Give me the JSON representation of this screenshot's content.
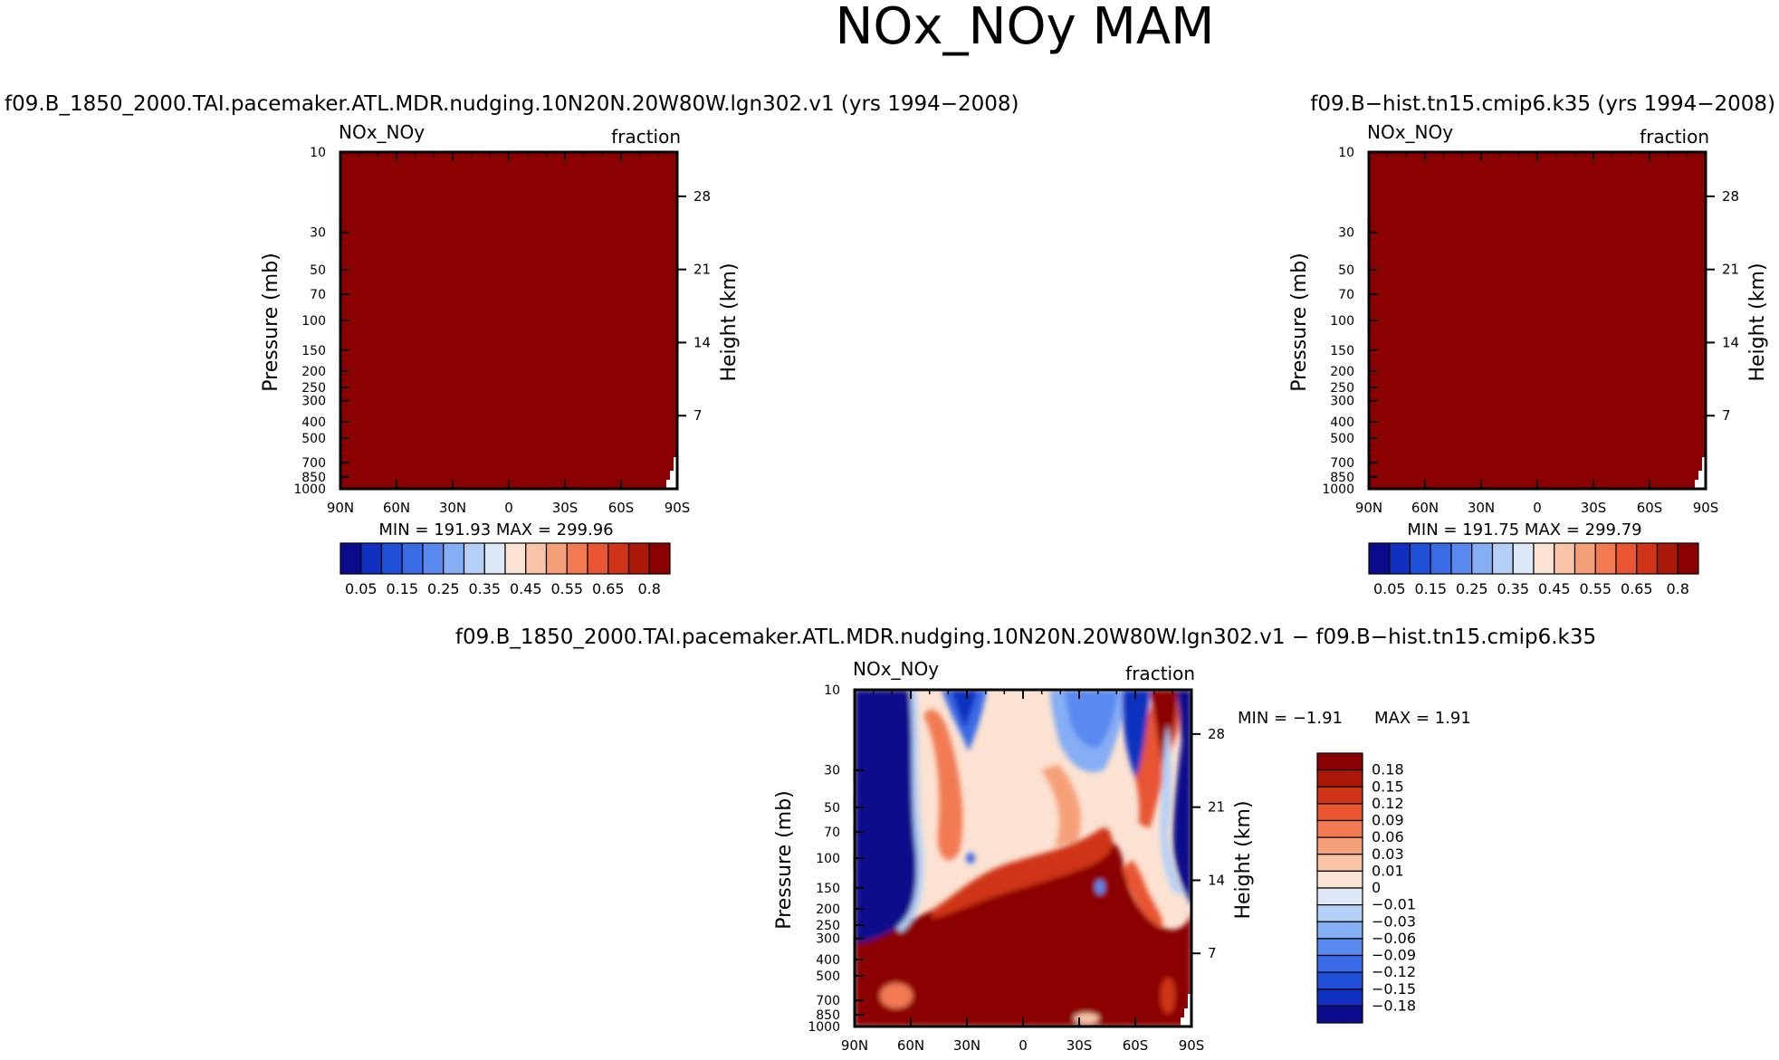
{
  "figure": {
    "title": "NOx_NOy MAM"
  },
  "colors": {
    "saturated_red": "#8b0000",
    "ink": "#000000",
    "paper": "#ffffff"
  },
  "chart_data": [
    {
      "id": "panel_left",
      "type": "heatmap",
      "title": "f09.B_1850_2000.TAI.pacemaker.ATL.MDR.nudging.10N20N.20W80W.lgn302.v1  (yrs 1994−2008)",
      "corner_left": "NOx_NOy",
      "corner_right": "fraction",
      "ylabel": "Pressure (mb)",
      "y2label": "Height (km)",
      "xticks": [
        "90N",
        "60N",
        "30N",
        "0",
        "30S",
        "60S",
        "90S"
      ],
      "yticks": [
        "10",
        "30",
        "50",
        "70",
        "100",
        "150",
        "200",
        "250",
        "300",
        "400",
        "500",
        "700",
        "850",
        "1000"
      ],
      "y2ticks": [
        "28",
        "21",
        "14",
        "7"
      ],
      "stats": "MIN =  191.93   MAX =  299.96",
      "fill": "uniformly saturated (all values above top contour 0.8)",
      "colorbar": {
        "labels": [
          "0.05",
          "0.15",
          "0.25",
          "0.35",
          "0.45",
          "0.55",
          "0.65",
          "0.8"
        ],
        "colors": [
          "#0a0a8c",
          "#1030c0",
          "#2050d8",
          "#3a6ae6",
          "#5a8af0",
          "#86aef4",
          "#b4d0f6",
          "#dde9f7",
          "#fbe2d2",
          "#f9c3a5",
          "#f6a07a",
          "#f27a52",
          "#e85530",
          "#cf3418",
          "#ab1a08",
          "#8b0000"
        ]
      }
    },
    {
      "id": "panel_right",
      "type": "heatmap",
      "title": "f09.B−hist.tn15.cmip6.k35  (yrs 1994−2008)",
      "corner_left": "NOx_NOy",
      "corner_right": "fraction",
      "ylabel": "Pressure (mb)",
      "y2label": "Height (km)",
      "xticks": [
        "90N",
        "60N",
        "30N",
        "0",
        "30S",
        "60S",
        "90S"
      ],
      "yticks": [
        "10",
        "30",
        "50",
        "70",
        "100",
        "150",
        "200",
        "250",
        "300",
        "400",
        "500",
        "700",
        "850",
        "1000"
      ],
      "y2ticks": [
        "28",
        "21",
        "14",
        "7"
      ],
      "stats": "MIN =  191.75   MAX =  299.79",
      "fill": "uniformly saturated (all values above top contour 0.8)",
      "colorbar": {
        "labels": [
          "0.05",
          "0.15",
          "0.25",
          "0.35",
          "0.45",
          "0.55",
          "0.65",
          "0.8"
        ],
        "colors": [
          "#0a0a8c",
          "#1030c0",
          "#2050d8",
          "#3a6ae6",
          "#5a8af0",
          "#86aef4",
          "#b4d0f6",
          "#dde9f7",
          "#fbe2d2",
          "#f9c3a5",
          "#f6a07a",
          "#f27a52",
          "#e85530",
          "#cf3418",
          "#ab1a08",
          "#8b0000"
        ]
      }
    },
    {
      "id": "panel_diff",
      "type": "heatmap",
      "title": "f09.B_1850_2000.TAI.pacemaker.ATL.MDR.nudging.10N20N.20W80W.lgn302.v1  −  f09.B−hist.tn15.cmip6.k35",
      "corner_left": "NOx_NOy",
      "corner_right": "fraction",
      "ylabel": "Pressure (mb)",
      "y2label": "Height (km)",
      "xticks": [
        "90N",
        "60N",
        "30N",
        "0",
        "30S",
        "60S",
        "90S"
      ],
      "yticks": [
        "10",
        "30",
        "50",
        "70",
        "100",
        "150",
        "200",
        "250",
        "300",
        "400",
        "500",
        "700",
        "850",
        "1000"
      ],
      "y2ticks": [
        "28",
        "21",
        "14",
        "7"
      ],
      "stats_min": "MIN =    −1.91",
      "stats_max": "MAX =     1.91",
      "colorbar": {
        "labels": [
          "0.18",
          "0.15",
          "0.12",
          "0.09",
          "0.06",
          "0.03",
          "0.01",
          "0",
          "−0.01",
          "−0.03",
          "−0.06",
          "−0.09",
          "−0.12",
          "−0.15",
          "−0.18"
        ],
        "colors": [
          "#8b0000",
          "#ab1a08",
          "#cf3418",
          "#e85530",
          "#f27a52",
          "#f6a07a",
          "#f9c3a5",
          "#fbe2d2",
          "#dde9f7",
          "#b4d0f6",
          "#86aef4",
          "#5a8af0",
          "#3a6ae6",
          "#2050d8",
          "#1030c0",
          "#0a0a8c"
        ]
      }
    }
  ]
}
